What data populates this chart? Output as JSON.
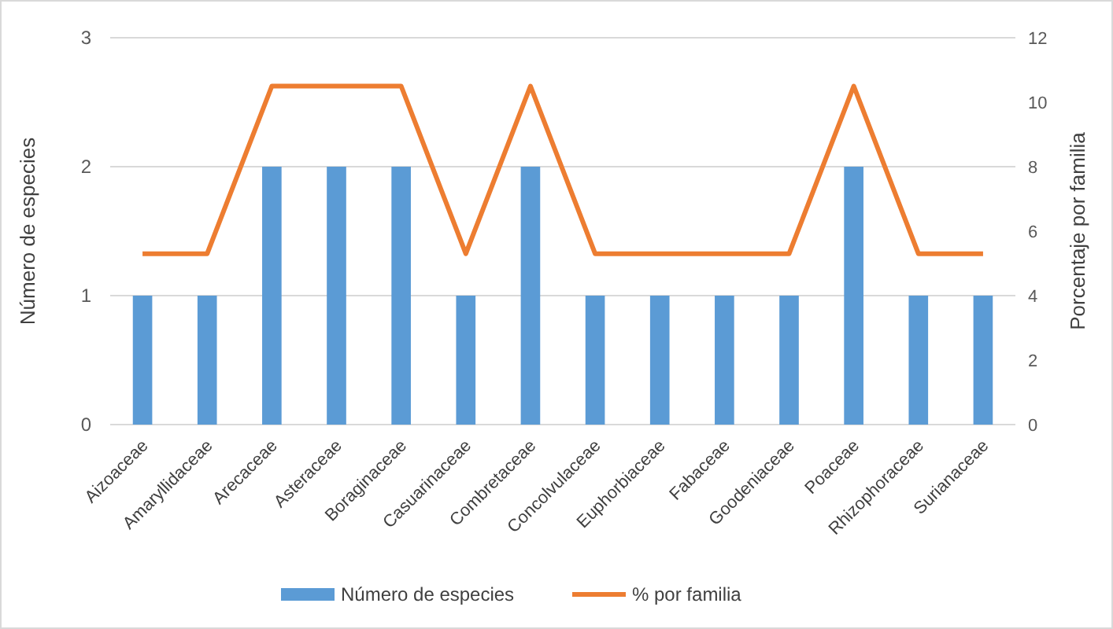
{
  "chart_data": {
    "type": "bar",
    "categories": [
      "Aizoaceae",
      "Amaryllidaceae",
      "Arecaceae",
      "Asteraceae",
      "Boraginaceae",
      "Casuarinaceae",
      "Combretaceae",
      "Concolvulaceae",
      "Euphorbiaceae",
      "Fabaceae",
      "Goodeniaceae",
      "Poaceae",
      "Rhizophoraceae",
      "Surianaceae"
    ],
    "series": [
      {
        "name": "Número de especies",
        "color": "#5b9bd5",
        "values": [
          1,
          1,
          2,
          2,
          2,
          1,
          2,
          1,
          1,
          1,
          1,
          2,
          1,
          1
        ]
      },
      {
        "name": "% por familia",
        "type": "line",
        "axis": "y2",
        "color": "#ed7d31",
        "values": [
          5.3,
          5.3,
          10.5,
          10.5,
          10.5,
          5.3,
          10.5,
          5.3,
          5.3,
          5.3,
          5.3,
          10.5,
          5.3,
          5.3
        ]
      }
    ],
    "ylabel": "Número de especies",
    "y2label": "Porcentaje por familia",
    "ylim": [
      0,
      3
    ],
    "yticks": [
      0,
      1,
      2,
      3
    ],
    "y2lim": [
      0,
      12
    ],
    "y2ticks": [
      0,
      2,
      4,
      6,
      8,
      10,
      12
    ],
    "grid": "y",
    "legend": "bottom",
    "marker": "none",
    "line_style": "solid"
  }
}
